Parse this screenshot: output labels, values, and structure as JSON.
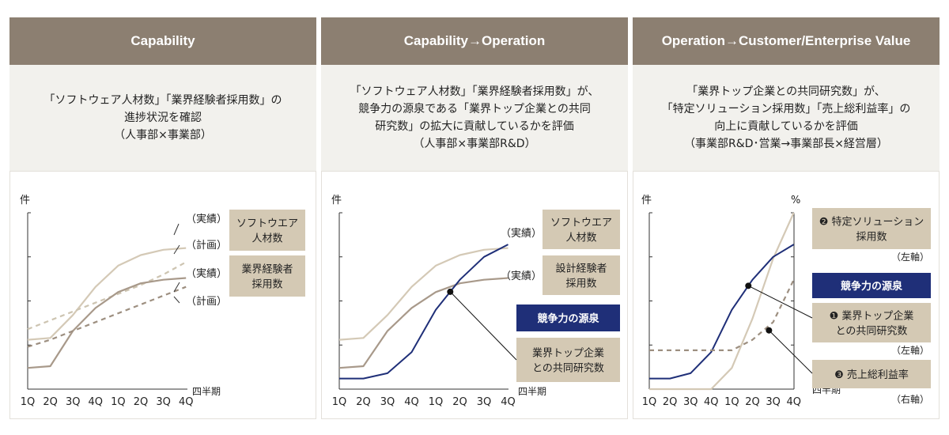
{
  "colors": {
    "header_bg": "#8c7f71",
    "panel_bg": "#f2f1ed",
    "tan_box": "#d4c9b4",
    "navy": "#1f2f78",
    "software_actual": "#d4c9b6",
    "software_plan": "#cdc4b1",
    "industry_actual": "#a8998a",
    "industry_plan": "#9d8f80",
    "research": "#1f2f78"
  },
  "panels": [
    {
      "title": "Capability",
      "desc": [
        "「ソフトウェア人材数」「業界経験者採用数」の",
        "進捗状況を確認",
        "（人事部×事業部）"
      ]
    },
    {
      "title": "Capability→Operation",
      "desc": [
        "「ソフトウェア人材数」「業界経験者採用数」が、",
        "競争力の源泉である「業界トップ企業との共同",
        "研究数」の拡大に貢献しているかを評価",
        "（人事部×事業部R&D）"
      ]
    },
    {
      "title": "Operation→Customer/Enterprise Value",
      "desc": [
        "「業界トップ企業との共同研究数」が、",
        "「特定ソリューション採用数」「売上総利益率」の",
        "向上に貢献しているかを評価",
        "（事業部R&D･営業→事業部長×経営層）"
      ]
    }
  ],
  "chart_data": [
    {
      "type": "line",
      "title": "Capability",
      "ylabel": "件",
      "xlabel": "四半期",
      "categories": [
        "1Q",
        "2Q",
        "3Q",
        "4Q",
        "1Q",
        "2Q",
        "3Q",
        "4Q"
      ],
      "ylim": [
        0,
        100
      ],
      "series": [
        {
          "name": "ソフトウエア人材数（実績）",
          "style": "solid",
          "color": "#d4c9b6",
          "values": [
            28,
            29,
            42,
            58,
            70,
            76,
            79,
            80
          ]
        },
        {
          "name": "ソフトウエア人材数（計画）",
          "style": "dashed",
          "color": "#cdc4b1",
          "values": [
            34,
            39,
            44,
            49,
            54,
            59,
            65,
            72
          ]
        },
        {
          "name": "業界経験者採用数（実績）",
          "style": "solid",
          "color": "#a8998a",
          "values": [
            12,
            13,
            33,
            46,
            55,
            60,
            62,
            63
          ]
        },
        {
          "name": "業界経験者採用数（計画）",
          "style": "dashed",
          "color": "#9d8f80",
          "values": [
            24,
            28,
            33,
            38,
            43,
            48,
            53,
            58
          ]
        }
      ],
      "annotations": {
        "actual_1": "（実績）",
        "plan_1": "（計画）",
        "actual_2": "（実績）",
        "plan_2": "（計画）",
        "box_1": [
          "ソフトウエア",
          "人材数"
        ],
        "box_2": [
          "業界経験者",
          "採用数"
        ]
      }
    },
    {
      "type": "line",
      "title": "Capability→Operation",
      "ylabel": "件",
      "xlabel": "四半期",
      "categories": [
        "1Q",
        "2Q",
        "3Q",
        "4Q",
        "1Q",
        "2Q",
        "3Q",
        "4Q"
      ],
      "ylim": [
        0,
        100
      ],
      "series": [
        {
          "name": "ソフトウエア人材数（実績）",
          "style": "solid",
          "color": "#d4c9b6",
          "values": [
            28,
            29,
            42,
            58,
            70,
            76,
            79,
            80
          ]
        },
        {
          "name": "設計経験者採用数（実績）",
          "style": "solid",
          "color": "#a8998a",
          "values": [
            12,
            13,
            33,
            46,
            55,
            60,
            62,
            63
          ]
        },
        {
          "name": "業界トップ企業との共同研究数",
          "style": "solid",
          "color": "#1f2f78",
          "values": [
            6,
            6,
            9,
            21,
            45,
            62,
            75,
            82
          ]
        }
      ],
      "annotations": {
        "actual_1": "（実績）",
        "actual_2": "（実績）",
        "box_1": [
          "ソフトウエア",
          "人材数"
        ],
        "box_2": [
          "設計経験者",
          "採用数"
        ],
        "navy_box": "競争力の源泉",
        "callout": [
          "業界トップ企業",
          "との共同研究数"
        ],
        "marker_series": "業界トップ企業との共同研究数",
        "marker_x": 4.6
      }
    },
    {
      "type": "line",
      "title": "Operation→Customer/Enterprise Value",
      "ylabel_left": "件",
      "ylabel_right": "%",
      "xlabel": "四半期",
      "categories": [
        "1Q",
        "2Q",
        "3Q",
        "4Q",
        "1Q",
        "2Q",
        "3Q",
        "4Q"
      ],
      "ylim": [
        0,
        100
      ],
      "series": [
        {
          "name": "特定ソリューション採用数",
          "style": "solid",
          "color": "#d4c9b6",
          "axis": "left",
          "values": [
            0,
            0,
            0,
            0,
            12,
            40,
            74,
            100
          ]
        },
        {
          "name": "業界トップ企業との共同研究数",
          "style": "solid",
          "color": "#1f2f78",
          "axis": "left",
          "values": [
            6,
            6,
            9,
            21,
            45,
            62,
            75,
            82
          ]
        },
        {
          "name": "売上総利益率",
          "style": "dashed",
          "color": "#9d8f80",
          "axis": "right",
          "values": [
            22,
            22,
            22,
            22,
            22,
            28,
            38,
            62
          ]
        }
      ],
      "annotations": {
        "box_1": [
          "❷ 特定ソリューション",
          "採用数"
        ],
        "axis_1": "（左軸）",
        "navy_box": "競争力の源泉",
        "box_2": [
          "❶ 業界トップ企業",
          "との共同研究数"
        ],
        "axis_2": "（左軸）",
        "box_3": [
          "❸ 売上総利益率"
        ],
        "axis_3": "（右軸）",
        "marker_1_series": "業界トップ企業との共同研究数",
        "marker_1_x": 4.8,
        "marker_2_series": "売上総利益率",
        "marker_2_x": 5.8
      }
    }
  ]
}
